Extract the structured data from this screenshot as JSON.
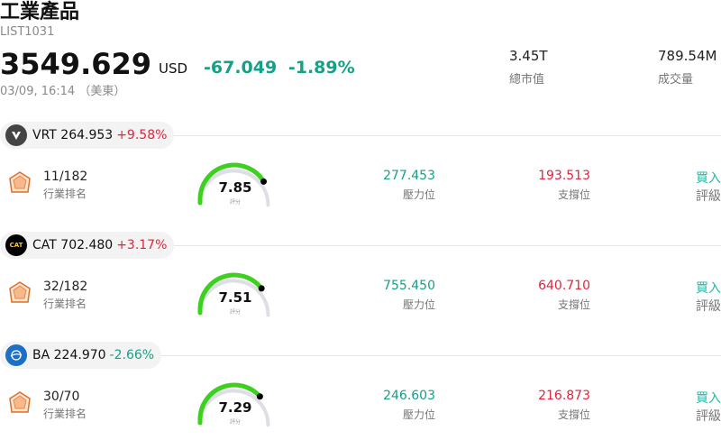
{
  "header": {
    "title": "工業產品",
    "code": "LIST1031",
    "price": "3549.629",
    "currency": "USD",
    "change": "-67.049",
    "change_pct": "-1.89%",
    "timestamp": "03/09, 16:14 （美東）",
    "market_cap_value": "3.45T",
    "market_cap_label": "總市值",
    "volume_value": "789.54M",
    "volume_label": "成交量"
  },
  "colors": {
    "up": "#e0243b",
    "down": "#16a085",
    "gauge_green": "#3dd11f",
    "gauge_track": "#dedee6",
    "rating": "#27b7a3"
  },
  "stocks": [
    {
      "ticker": "VRT",
      "price": "264.953",
      "change_pct": "+9.58%",
      "direction": "up",
      "logo_icon": "vertiv-logo-icon",
      "rank": "11/182",
      "rank_label": "行業排名",
      "score": "7.85",
      "score_value": 7.85,
      "score_label": "評分",
      "resistance": "277.453",
      "resistance_label": "壓力位",
      "support": "193.513",
      "support_label": "支撐位",
      "rating": "買入",
      "rating_label": "評級"
    },
    {
      "ticker": "CAT",
      "price": "702.480",
      "change_pct": "+3.17%",
      "direction": "up",
      "logo_icon": "caterpillar-logo-icon",
      "rank": "32/182",
      "rank_label": "行業排名",
      "score": "7.51",
      "score_value": 7.51,
      "score_label": "評分",
      "resistance": "755.450",
      "resistance_label": "壓力位",
      "support": "640.710",
      "support_label": "支撐位",
      "rating": "買入",
      "rating_label": "評級"
    },
    {
      "ticker": "BA",
      "price": "224.970",
      "change_pct": "-2.66%",
      "direction": "down",
      "logo_icon": "boeing-logo-icon",
      "rank": "30/70",
      "rank_label": "行業排名",
      "score": "7.29",
      "score_value": 7.29,
      "score_label": "評分",
      "resistance": "246.603",
      "resistance_label": "壓力位",
      "support": "216.873",
      "support_label": "支撐位",
      "rating": "買入",
      "rating_label": "評級"
    }
  ]
}
